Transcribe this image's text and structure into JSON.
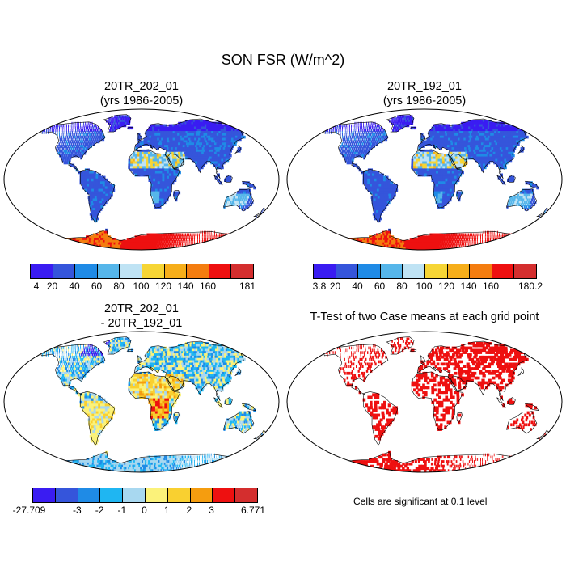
{
  "title": "SON FSR (W/m^2)",
  "panels": [
    {
      "id": "case1",
      "title_line1": "20TR_202_01",
      "title_line2": "(yrs 1986-2005)"
    },
    {
      "id": "case2",
      "title_line1": "20TR_192_01",
      "title_line2": "(yrs 1986-2005)"
    },
    {
      "id": "diff",
      "title_line1": "20TR_202_01",
      "title_line2": "- 20TR_192_01"
    },
    {
      "id": "ttest",
      "title_line1": "T-Test of two Case means at each grid point",
      "title_line2": ""
    }
  ],
  "colorbars": [
    {
      "id": "cb1",
      "colors": [
        "#3a1cf2",
        "#3555db",
        "#1f8be6",
        "#56b6ea",
        "#bfe3f4",
        "#f6d535",
        "#f6ae1a",
        "#f47d0f",
        "#ee1010",
        "#d42e2e"
      ],
      "labels": [
        "4",
        "20",
        "40",
        "60",
        "80",
        "100",
        "120",
        "140",
        "160",
        "181"
      ]
    },
    {
      "id": "cb2",
      "colors": [
        "#3a1cf2",
        "#3555db",
        "#1f8be6",
        "#56b6ea",
        "#bfe3f4",
        "#f6d535",
        "#f6ae1a",
        "#f47d0f",
        "#ee1010",
        "#d42e2e"
      ],
      "labels": [
        "3.8",
        "20",
        "40",
        "60",
        "80",
        "100",
        "120",
        "140",
        "160",
        "180.2"
      ]
    },
    {
      "id": "cb3",
      "colors": [
        "#3a1cf2",
        "#3555db",
        "#1f8be6",
        "#1fb6f2",
        "#a8d8f0",
        "#fbf27a",
        "#f9d030",
        "#f59d0f",
        "#ee1010",
        "#d42e2e"
      ],
      "labels": [
        "-27.709",
        "-3",
        "-2",
        "-1",
        "0",
        "1",
        "2",
        "3",
        "6.771"
      ]
    }
  ],
  "significance_note": "Cells are significant at 0.1 level"
}
